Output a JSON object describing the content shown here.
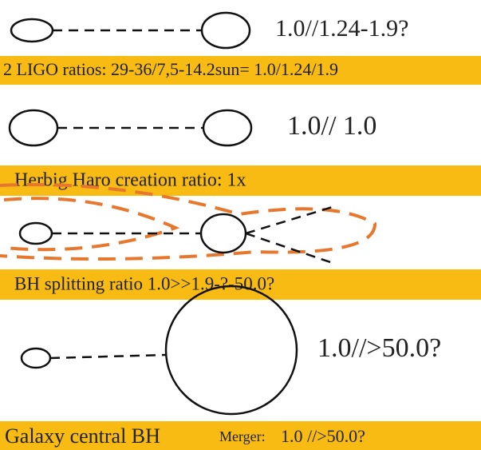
{
  "rows": [
    {
      "ratio": "1.0//1.24-1.9?",
      "banner": "2 LIGO ratios: 29-36/7,5-14.2sun= 1.0/1.24/1.9"
    },
    {
      "ratio": "1.0// 1.0",
      "banner": "Herbig Haro creation ratio: 1x"
    },
    {
      "banner": "BH splitting ratio 1.0>>1.9-?-50.0?"
    },
    {
      "ratio": "1.0//>50.0?",
      "banner_parts": [
        "Galaxy central BH",
        "Merger:",
        "1.0 //>50.0?"
      ]
    }
  ]
}
